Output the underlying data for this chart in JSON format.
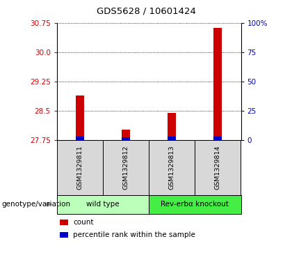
{
  "title": "GDS5628 / 10601424",
  "samples": [
    "GSM1329811",
    "GSM1329812",
    "GSM1329813",
    "GSM1329814"
  ],
  "red_values": [
    28.9,
    28.02,
    28.46,
    30.62
  ],
  "blue_values": [
    27.84,
    27.83,
    27.84,
    27.84
  ],
  "bar_base": 27.75,
  "ylim_left": [
    27.75,
    30.75
  ],
  "yticks_left": [
    27.75,
    28.5,
    29.25,
    30.0,
    30.75
  ],
  "ylim_right": [
    0,
    100
  ],
  "yticks_right": [
    0,
    25,
    50,
    75,
    100
  ],
  "yticklabels_right": [
    "0",
    "25",
    "50",
    "75",
    "100%"
  ],
  "groups": [
    {
      "label": "wild type",
      "spans": [
        0,
        1
      ],
      "color": "#bbffbb"
    },
    {
      "label": "Rev-erbα knockout",
      "spans": [
        2,
        3
      ],
      "color": "#44ee44"
    }
  ],
  "genotype_label": "genotype/variation",
  "legend_items": [
    {
      "color": "#cc0000",
      "label": "count"
    },
    {
      "color": "#0000cc",
      "label": "percentile rank within the sample"
    }
  ],
  "bg_color": "#d8d8d8",
  "plot_bg": "#ffffff",
  "red_color": "#cc0000",
  "blue_color": "#0000cc",
  "left_tick_color": "#cc0000",
  "right_tick_color": "#0000bb",
  "bar_width": 0.18
}
